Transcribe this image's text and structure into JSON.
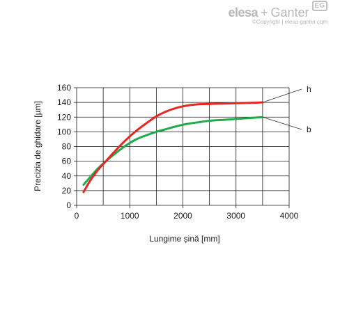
{
  "brand": {
    "logo_text_1": "elesa",
    "logo_plus": "+",
    "logo_text_2": "Ganter",
    "badge": "EG",
    "copyright": "©Copyright | elesa-ganter.com"
  },
  "chart_data": {
    "type": "line",
    "xlabel": "Lungime șină [mm]",
    "ylabel": "Precizia de ghidare [µm]",
    "xlim": [
      0,
      4000
    ],
    "ylim": [
      0,
      160
    ],
    "xticks": [
      0,
      1000,
      2000,
      3000,
      4000
    ],
    "yticks": [
      0,
      20,
      40,
      60,
      80,
      100,
      120,
      140,
      160
    ],
    "grid": true,
    "series": [
      {
        "name": "h",
        "color": "#e8251f",
        "x": [
          130,
          250,
          400,
          550,
          700,
          900,
          1100,
          1300,
          1500,
          1700,
          1900,
          2100,
          2300,
          2500,
          2800,
          3100,
          3500
        ],
        "y": [
          18,
          33,
          48,
          60,
          72,
          87,
          100,
          111,
          121,
          128,
          133,
          136,
          137.5,
          138,
          138.5,
          139,
          140
        ]
      },
      {
        "name": "b",
        "color": "#1faa4b",
        "x": [
          130,
          250,
          400,
          550,
          700,
          900,
          1100,
          1300,
          1500,
          1700,
          1900,
          2100,
          2300,
          2500,
          2800,
          3100,
          3500
        ],
        "y": [
          28,
          38,
          50,
          60,
          69,
          80,
          89,
          95,
          100,
          104,
          108,
          111,
          113,
          115,
          116.5,
          118,
          120
        ]
      }
    ]
  }
}
